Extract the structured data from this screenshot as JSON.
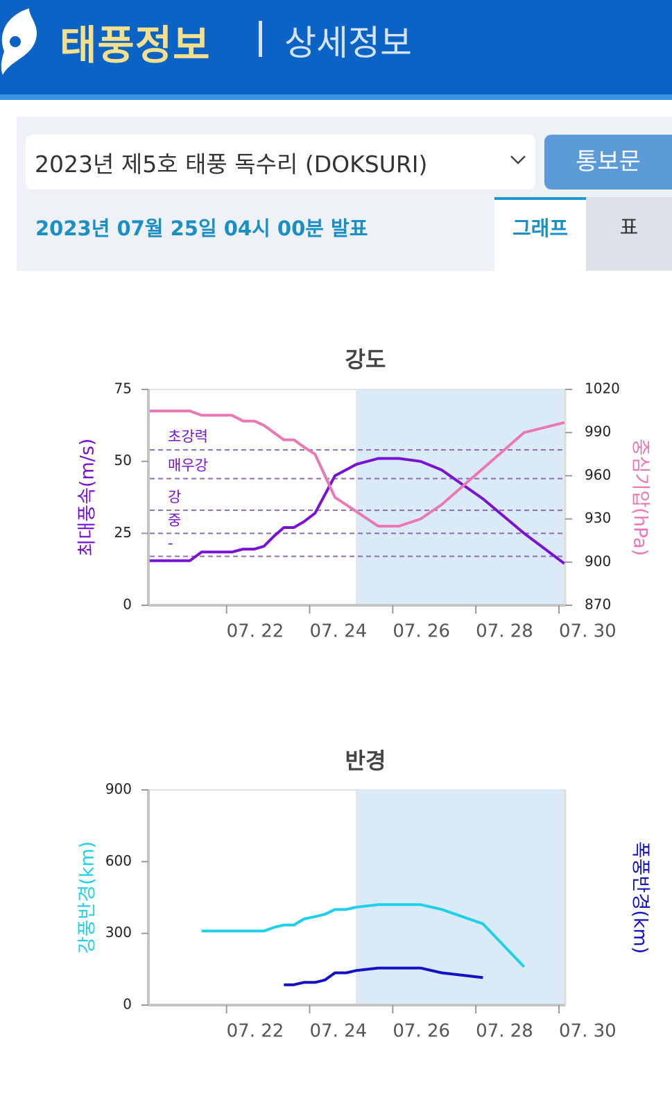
{
  "header": {
    "brand": "태풍정보",
    "section": "상세정보"
  },
  "controls": {
    "typhoon": "2023년 제5호 태풍 독수리 (DOKSURI)",
    "bulletin_button": "통보문",
    "issued": "2023년 07월 25일 04시 00분 발표",
    "tabs": [
      "그래프",
      "표"
    ]
  },
  "chart_data": [
    {
      "type": "line",
      "title": "강도",
      "y_label": "최대풍속(m/s)",
      "y2_label": "중심기압(hPa)",
      "xlim": [
        20.12,
        30.15
      ],
      "xticks": [
        {
          "value": 22,
          "label": "07. 22"
        },
        {
          "value": 24,
          "label": "07. 24"
        },
        {
          "value": 26,
          "label": "07. 26"
        },
        {
          "value": 28,
          "label": "07. 28"
        },
        {
          "value": 30,
          "label": "07. 30"
        }
      ],
      "ylim": [
        0,
        75
      ],
      "yticks": [
        0,
        25,
        50,
        75
      ],
      "y2lim": [
        870,
        1020
      ],
      "y2ticks": [
        870,
        900,
        930,
        960,
        990,
        1020
      ],
      "forecast_region": [
        25.13,
        30.15
      ],
      "thresholds": [
        {
          "value": 54,
          "label": "초강력"
        },
        {
          "value": 44,
          "label": "매우강"
        },
        {
          "value": 33,
          "label": "강"
        },
        {
          "value": 25,
          "label": "중"
        },
        {
          "value": 17,
          "label": "-"
        }
      ],
      "threshold_color": "#8a6fb0",
      "x": [
        20.15,
        21.12,
        21.4,
        22.13,
        22.4,
        22.67,
        22.9,
        23.14,
        23.38,
        23.62,
        23.86,
        24.13,
        24.61,
        25.13,
        25.65,
        26.15,
        26.67,
        27.18,
        28.17,
        29.16,
        30.13
      ],
      "series": [
        {
          "name": "최대풍속",
          "color": "#7a12d6",
          "values": [
            15.5,
            15.5,
            18.5,
            18.5,
            19.5,
            19.5,
            20.5,
            24,
            27,
            27,
            29,
            32,
            45,
            49,
            51,
            51,
            50,
            47,
            37,
            25,
            14.5
          ]
        },
        {
          "name": "중심기압",
          "color": "#ea78b4",
          "axis": "y2",
          "values": [
            1005,
            1005,
            1002,
            1002,
            998,
            998,
            995,
            990,
            985,
            985,
            980,
            975,
            945,
            935,
            925,
            925,
            930,
            940,
            965,
            990,
            997
          ]
        }
      ]
    },
    {
      "type": "line",
      "title": "반경",
      "y_label": "강풍반경(km)",
      "y2_label": "폭풍반경(km)",
      "xlim": [
        20.12,
        30.15
      ],
      "xticks": [
        {
          "value": 22,
          "label": "07. 22"
        },
        {
          "value": 24,
          "label": "07. 24"
        },
        {
          "value": 26,
          "label": "07. 26"
        },
        {
          "value": 28,
          "label": "07. 28"
        },
        {
          "value": 30,
          "label": "07. 30"
        }
      ],
      "ylim": [
        0,
        900
      ],
      "yticks": [
        0,
        300,
        600,
        900
      ],
      "forecast_region": [
        25.13,
        30.15
      ],
      "series": [
        {
          "name": "강풍반경",
          "color": "#1fd0ea",
          "x": [
            21.4,
            22.9,
            23.14,
            23.38,
            23.62,
            23.86,
            24.13,
            24.37,
            24.61,
            24.88,
            25.13,
            25.65,
            26.15,
            26.67,
            27.18,
            28.17,
            29.16
          ],
          "values": [
            310,
            310,
            325,
            335,
            335,
            360,
            370,
            380,
            400,
            400,
            410,
            420,
            420,
            420,
            400,
            340,
            160
          ]
        },
        {
          "name": "폭풍반경",
          "color": "#1212c4",
          "x": [
            23.38,
            23.62,
            23.86,
            24.13,
            24.37,
            24.61,
            24.88,
            25.13,
            25.65,
            26.15,
            26.67,
            27.18,
            28.17
          ],
          "values": [
            85,
            85,
            95,
            95,
            105,
            135,
            135,
            145,
            155,
            155,
            155,
            135,
            115
          ]
        }
      ]
    }
  ]
}
